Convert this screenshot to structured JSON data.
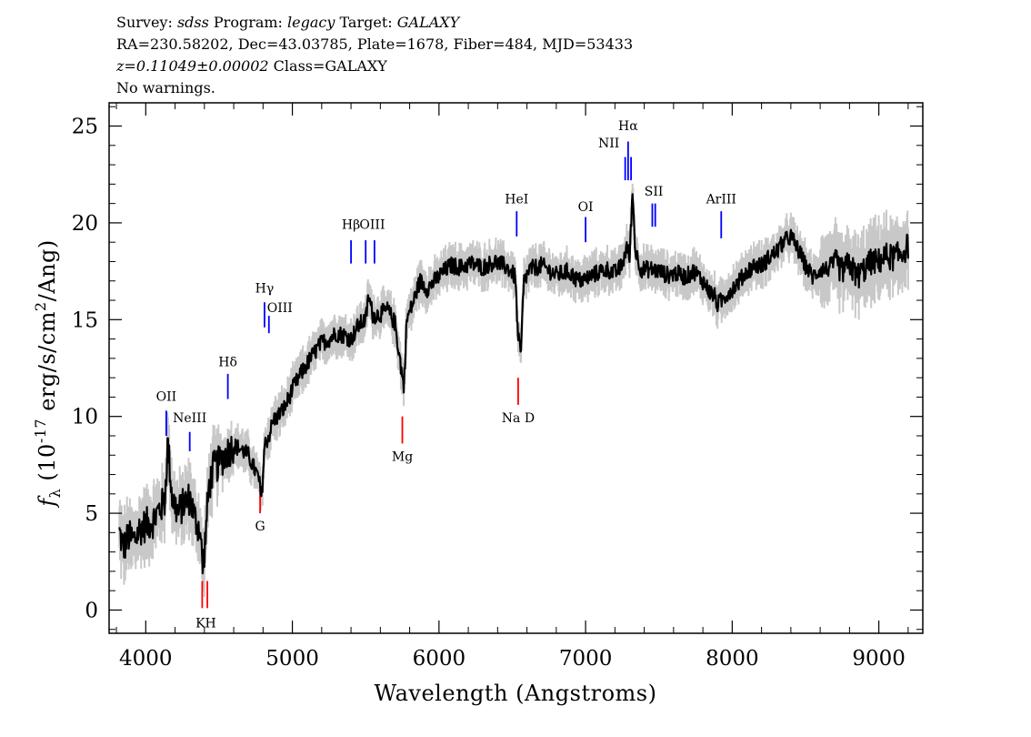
{
  "header": {
    "line1": {
      "survey_label": "Survey: ",
      "survey": "sdss",
      "program_label": " Program: ",
      "program": "legacy",
      "target_label": " Target: ",
      "target": "GALAXY"
    },
    "line2": "RA=230.58202, Dec=43.03785, Plate=1678, Fiber=484, MJD=53433",
    "line3": {
      "z": "z=0.11049±0.00002",
      "class": " Class=GALAXY"
    },
    "line4": "No warnings."
  },
  "chart_data": {
    "type": "line",
    "xlabel": "Wavelength (Angstroms)",
    "ylabel": "f_λ (10^-17 erg/s/cm^2/Ang)",
    "xlim": [
      3750,
      9300
    ],
    "ylim": [
      -1.2,
      26.2
    ],
    "xticks": [
      4000,
      5000,
      6000,
      7000,
      8000,
      9000
    ],
    "yticks": [
      0,
      5,
      10,
      15,
      20,
      25
    ],
    "colors": {
      "spectrum": "#000000",
      "error": "#c8c8c8",
      "emission": "#0000ff",
      "absorption": "#ff0000",
      "frame": "#000000"
    },
    "series": [
      {
        "x": [
          3820,
          3850,
          3880,
          3920,
          3960,
          4000,
          4050,
          4100,
          4130,
          4150,
          4180,
          4220,
          4260,
          4300,
          4340,
          4370,
          4390,
          4410,
          4430,
          4460,
          4500,
          4550,
          4600,
          4650,
          4700,
          4740,
          4770,
          4790,
          4810,
          4840,
          4870,
          4900,
          4950,
          5000,
          5050,
          5100,
          5150,
          5200,
          5250,
          5300,
          5350,
          5400,
          5450,
          5500,
          5520,
          5550,
          5600,
          5650,
          5700,
          5740,
          5760,
          5780,
          5820,
          5870,
          5920,
          5970,
          6020,
          6080,
          6150,
          6220,
          6300,
          6380,
          6440,
          6480,
          6520,
          6540,
          6560,
          6570,
          6580,
          6620,
          6700,
          6800,
          6880,
          6950,
          7000,
          7050,
          7100,
          7150,
          7200,
          7250,
          7280,
          7300,
          7320,
          7340,
          7380,
          7450,
          7500,
          7560,
          7620,
          7680,
          7740,
          7800,
          7850,
          7880,
          7900,
          7930,
          7960,
          8000,
          8050,
          8100,
          8150,
          8200,
          8250,
          8300,
          8350,
          8400,
          8450,
          8500,
          8550,
          8600,
          8650,
          8700,
          8750,
          8800,
          8850,
          8900,
          8950,
          9000,
          9050,
          9100,
          9150,
          9200
        ],
        "values": [
          4.0,
          3.2,
          3.8,
          3.6,
          4.2,
          4.4,
          4.6,
          5.3,
          5.6,
          8.7,
          5.8,
          5.0,
          5.5,
          5.8,
          4.6,
          4.2,
          2.0,
          4.1,
          6.3,
          7.3,
          7.6,
          8.1,
          8.5,
          8.3,
          8.0,
          7.3,
          6.8,
          5.7,
          8.5,
          9.0,
          9.8,
          10.0,
          10.5,
          11.4,
          12.1,
          12.7,
          13.3,
          13.8,
          14.0,
          14.3,
          14.2,
          14.0,
          14.7,
          15.0,
          16.2,
          15.2,
          15.3,
          15.5,
          14.8,
          12.6,
          11.5,
          15.0,
          15.8,
          17.0,
          16.6,
          17.0,
          17.4,
          17.8,
          17.7,
          17.9,
          17.7,
          18.0,
          17.8,
          17.6,
          17.2,
          14.0,
          13.2,
          15.5,
          17.0,
          17.6,
          17.8,
          17.3,
          17.5,
          17.0,
          17.1,
          17.3,
          17.5,
          17.6,
          17.4,
          17.8,
          18.8,
          18.2,
          21.6,
          18.5,
          17.6,
          17.6,
          17.5,
          17.3,
          17.4,
          17.2,
          17.5,
          17.0,
          16.4,
          16.2,
          15.8,
          16.0,
          16.3,
          16.6,
          17.0,
          17.5,
          17.8,
          17.8,
          18.2,
          18.5,
          19.0,
          19.3,
          18.6,
          17.8,
          17.2,
          17.6,
          17.6,
          18.0,
          17.5,
          17.9,
          17.2,
          17.6,
          18.0,
          18.0,
          18.3,
          18.2,
          18.4,
          18.8
        ]
      }
    ],
    "emission_lines": [
      {
        "label": "OII",
        "wave": 4140,
        "y1": 10.3,
        "y2": 9.0,
        "ly": 10.8
      },
      {
        "label": "NeIII",
        "wave": 4300,
        "y1": 9.2,
        "y2": 8.2,
        "ly": 9.7
      },
      {
        "label": "Hδ",
        "wave": 4560,
        "y1": 12.2,
        "y2": 10.9,
        "ly": 12.6
      },
      {
        "label": "Hγ",
        "wave": 4810,
        "y1": 15.9,
        "y2": 14.6,
        "ly": 16.4
      },
      {
        "label": "OIII",
        "wave": 4840,
        "y1": 15.2,
        "y2": 14.3,
        "ly": 15.4
      },
      {
        "label": "Hβ",
        "wave": 5400,
        "y1": 19.1,
        "y2": 17.9,
        "ly": 19.7
      },
      {
        "label": "OIII",
        "wave": 5500,
        "y1": 19.1,
        "y2": 17.9,
        "ly": 19.7
      },
      {
        "label": "OIII",
        "wave": 5560,
        "y1": 19.1,
        "y2": 17.9,
        "ly": 19.7
      },
      {
        "label": "HeI",
        "wave": 6530,
        "y1": 20.6,
        "y2": 19.3,
        "ly": 21.0
      },
      {
        "label": "OI",
        "wave": 7000,
        "y1": 20.3,
        "y2": 19.0,
        "ly": 20.6
      },
      {
        "label": "NII",
        "wave": 7270,
        "y1": 23.4,
        "y2": 22.2,
        "ly": 23.9
      },
      {
        "label": "Hα",
        "wave": 7290,
        "y1": 24.2,
        "y2": 22.2,
        "ly": 24.8
      },
      {
        "label": "NII",
        "wave": 7310,
        "y1": 23.4,
        "y2": 22.2,
        "ly": 23.9
      },
      {
        "label": "SII",
        "wave": 7455,
        "y1": 21.0,
        "y2": 19.8,
        "ly": 21.4
      },
      {
        "label": "SII",
        "wave": 7475,
        "y1": 21.0,
        "y2": 19.8,
        "ly": 21.4
      },
      {
        "label": "ArIII",
        "wave": 7925,
        "y1": 20.6,
        "y2": 19.2,
        "ly": 21.0
      }
    ],
    "absorption_lines": [
      {
        "label": "KH",
        "wave": 4410,
        "y1": 1.5,
        "y2": 0.1,
        "ly": -0.9
      },
      {
        "label": "G",
        "wave": 4780,
        "y1": 6.4,
        "y2": 5.0,
        "ly": 4.1
      },
      {
        "label": "Mg",
        "wave": 5750,
        "y1": 10.0,
        "y2": 8.6,
        "ly": 7.7
      },
      {
        "label": "Na D",
        "wave": 6540,
        "y1": 12.0,
        "y2": 10.6,
        "ly": 9.7
      }
    ]
  }
}
